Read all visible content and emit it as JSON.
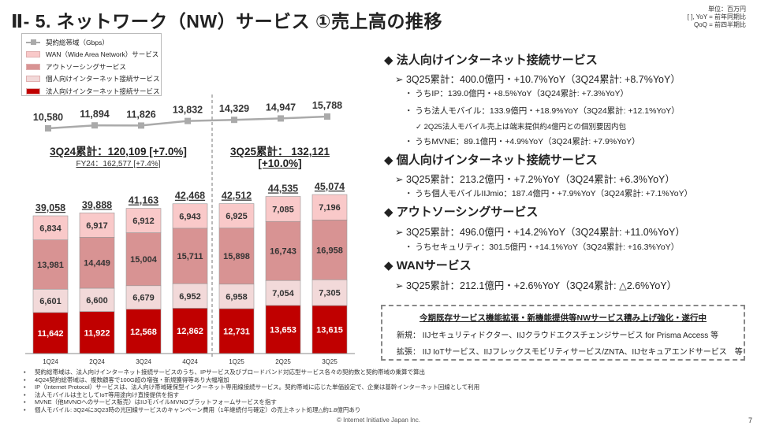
{
  "header": {
    "title": "Ⅱ- 5.  ネットワーク（NW）サービス  ①売上高の推移",
    "unit_lines": [
      "単位：百万円",
      "[ ], YoY = 前年同期比",
      "QoQ = 前四半期比"
    ]
  },
  "legend": [
    {
      "label": "契約総帯域（Gbps）",
      "color": "#aaaaaa",
      "type": "line"
    },
    {
      "label": "WAN（Wide Area Network）サービス",
      "color": "#f9c9c9",
      "type": "box"
    },
    {
      "label": "アウトソーシングサービス",
      "color": "#d89393",
      "type": "box"
    },
    {
      "label": "個人向けインターネット接続サービス",
      "color": "#f2d9d9",
      "type": "box"
    },
    {
      "label": "法人向けインターネット接続サービス",
      "color": "#c00000",
      "type": "box"
    }
  ],
  "cumulative": {
    "left_main": "3Q24累計：120,109 [+7.0%]",
    "left_sub": "FY24：162,577 [+7.4%]",
    "right_main": "3Q25累計： 132,121",
    "right_sub": "[+10.0%]"
  },
  "chart_data": {
    "type": "bar",
    "stacked": true,
    "categories": [
      "1Q24",
      "2Q24",
      "3Q24",
      "4Q24",
      "1Q25",
      "2Q25",
      "3Q25"
    ],
    "series": [
      {
        "name": "法人向けインターネット接続サービス",
        "color": "#c00000",
        "values": [
          11642,
          11922,
          12568,
          12862,
          12731,
          13653,
          13615
        ]
      },
      {
        "name": "個人向けインターネット接続サービス",
        "color": "#f2d9d9",
        "values": [
          6601,
          6600,
          6679,
          6952,
          6958,
          7054,
          7305
        ]
      },
      {
        "name": "アウトソーシングサービス",
        "color": "#d89393",
        "values": [
          13981,
          14449,
          15004,
          15711,
          15898,
          16743,
          16958
        ]
      },
      {
        "name": "WAN（Wide Area Network）サービス",
        "color": "#f9c9c9",
        "values": [
          6834,
          6917,
          6912,
          6943,
          6925,
          7085,
          7196
        ]
      }
    ],
    "totals": [
      39058,
      39888,
      41163,
      42468,
      42512,
      44535,
      45074
    ],
    "line_series": {
      "name": "契約総帯域（Gbps）",
      "type": "line",
      "color": "#aaaaaa",
      "values": [
        10580,
        11894,
        11826,
        13832,
        14329,
        14947,
        15788
      ]
    }
  },
  "right": {
    "sections": [
      {
        "heading": "◆ 法人向けインターネット接続サービス",
        "lines": [
          {
            "lvl": 1,
            "text": "➢ 3Q25累計：400.0億円・+10.7%YoY（3Q24累計: +8.7%YoY）"
          },
          {
            "lvl": 2,
            "text": "・ うちIP：139.0億円・+8.5%YoY（3Q24累計: +7.3%YoY）"
          },
          {
            "lvl": 2,
            "text": "・ うち法人モバイル：133.9億円・+18.9%YoY（3Q24累計: +12.1%YoY）"
          },
          {
            "lvl": 3,
            "text": "✓ 2Q25法人モバイル売上は端末提供約4億円との個別要因内包"
          },
          {
            "lvl": 2,
            "text": "・ うちMVNE：89.1億円・+4.9%YoY（3Q24累計: +7.9%YoY）"
          }
        ]
      },
      {
        "heading": "◆ 個人向けインターネット接続サービス",
        "lines": [
          {
            "lvl": 1,
            "text": "➢ 3Q25累計：213.2億円・+7.2%YoY（3Q24累計: +6.3%YoY）"
          },
          {
            "lvl": 2,
            "text": "・ うち個人モバイルIIJmio：187.4億円・+7.9%YoY（3Q24累計: +7.1%YoY）"
          }
        ]
      },
      {
        "heading": "◆ アウトソーシングサービス",
        "lines": [
          {
            "lvl": 1,
            "text": "➢ 3Q25累計：496.0億円・+14.2%YoY（3Q24累計: +11.0%YoY）"
          },
          {
            "lvl": 2,
            "text": "・ うちセキュリティ：301.5億円・+14.1%YoY（3Q24累計: +16.3%YoY）"
          }
        ]
      },
      {
        "heading": "◆ WANサービス",
        "lines": [
          {
            "lvl": 1,
            "text": "➢ 3Q25累計：212.1億円・+2.6%YoY（3Q24累計: △2.6%YoY）"
          }
        ]
      }
    ],
    "box": {
      "title": "今期既存サービス機能拡張・新機能提供等NWサービス積み上げ強化・遂行中",
      "new": "新規：  IIJセキュリティドクター、IIJクラウドエクスチェンジサービス for Prisma Access 等",
      "ext": "拡張：  IIJ IoTサービス、IIJフレックスモビリティサービス/ZNTA、IIJセキュアエンドサービス　等"
    }
  },
  "notes": [
    "契約総帯域は、法人向けインターネット接続サービスのうち、IPサービス及びブロードバンド対応型サービス各々の契約数と契約帯域の乗算で算出",
    "4Q24契約総帯域は、複数顧客で100G超の増強・新規獲得等あり大幅増加",
    "IP（Internet Protocol）サービスは、法人向け帯域確保型インターネット専用線接続サービス。契約帯域に応じた単価設定で、企業は基幹インターネット回線として利用",
    "法人モバイルは主としてIoT等用途向け直接提供を指す",
    "MVNE（他MVNOへのサービス販売）はIIJモバイルMVNOプラットフォームサービスを指す",
    "個人モバイル: 3Q24に3Q23時の光回線サービスのキャンペーン費用（1年継続付与確定）の売上ネット処理△約1.8億円あり"
  ],
  "footer": {
    "copyright": "© Internet Initiative Japan Inc.",
    "page": "7"
  }
}
